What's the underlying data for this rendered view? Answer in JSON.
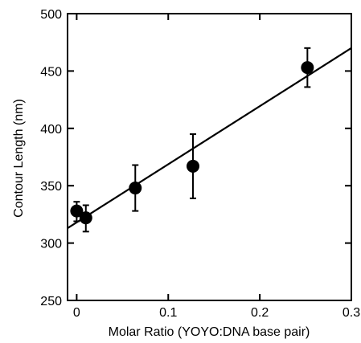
{
  "chart_data": {
    "type": "scatter",
    "xlabel": "Molar Ratio (YOYO:DNA base pair)",
    "ylabel": "Contour Length (nm)",
    "xlim": [
      -0.01,
      0.3
    ],
    "ylim": [
      250,
      500
    ],
    "x_ticks": [
      0,
      0.1,
      0.2,
      0.3
    ],
    "x_tick_labels": [
      "0",
      "0.1",
      "0.2",
      "0.3"
    ],
    "y_ticks": [
      250,
      300,
      350,
      400,
      450,
      500
    ],
    "y_tick_labels": [
      "250",
      "300",
      "350",
      "400",
      "450",
      "500"
    ],
    "grid": false,
    "series": [
      {
        "points": [
          {
            "x": 0.0,
            "y": 328,
            "err_low": 9,
            "err_high": 8
          },
          {
            "x": 0.01,
            "y": 322,
            "err_low": 12,
            "err_high": 11
          },
          {
            "x": 0.064,
            "y": 348,
            "err_low": 20,
            "err_high": 20
          },
          {
            "x": 0.127,
            "y": 367,
            "err_low": 28,
            "err_high": 28
          },
          {
            "x": 0.252,
            "y": 453,
            "err_low": 17,
            "err_high": 17
          }
        ]
      }
    ],
    "fit_line": {
      "x": [
        -0.01,
        0.3
      ],
      "y": [
        313,
        470
      ]
    }
  }
}
